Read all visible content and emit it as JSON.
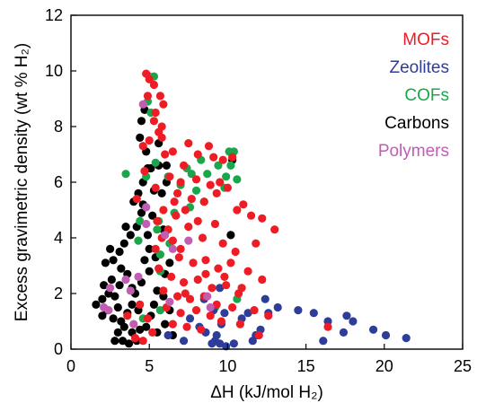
{
  "chart_data": {
    "type": "scatter",
    "xlabel": "ΔH (kJ/mol H₂)",
    "ylabel": "Excess gravimetric density (wt % H₂)",
    "xlim": [
      0,
      25
    ],
    "ylim": [
      0,
      12
    ],
    "xticks": [
      0,
      5,
      10,
      15,
      20,
      25
    ],
    "yticks": [
      0,
      2,
      4,
      6,
      8,
      10,
      12
    ],
    "grid": false,
    "legend_position": "top-right",
    "series": [
      {
        "name": "MOFs",
        "color": "#ee1c25",
        "points": [
          [
            4.8,
            9.9
          ],
          [
            5.0,
            9.7
          ],
          [
            5.3,
            9.5
          ],
          [
            5.7,
            9.1
          ],
          [
            5.9,
            8.8
          ],
          [
            5.3,
            8.2
          ],
          [
            5.6,
            7.8
          ],
          [
            4.6,
            7.3
          ],
          [
            5.0,
            7.5
          ],
          [
            5.8,
            7.6
          ],
          [
            5.4,
            8.5
          ],
          [
            6.0,
            7.0
          ],
          [
            6.5,
            7.1
          ],
          [
            7.5,
            7.4
          ],
          [
            8.1,
            7.0
          ],
          [
            8.8,
            7.3
          ],
          [
            9.1,
            6.9
          ],
          [
            9.7,
            6.8
          ],
          [
            10.3,
            6.9
          ],
          [
            7.2,
            6.6
          ],
          [
            6.3,
            6.2
          ],
          [
            7.0,
            6.0
          ],
          [
            8.0,
            6.1
          ],
          [
            8.9,
            5.9
          ],
          [
            9.5,
            6.0
          ],
          [
            10.0,
            5.8
          ],
          [
            11.0,
            5.2
          ],
          [
            11.5,
            4.8
          ],
          [
            12.2,
            4.7
          ],
          [
            13.0,
            4.3
          ],
          [
            6.8,
            5.6
          ],
          [
            7.7,
            5.4
          ],
          [
            8.5,
            5.3
          ],
          [
            9.3,
            5.6
          ],
          [
            10.6,
            5.0
          ],
          [
            7.3,
            5.0
          ],
          [
            8.1,
            4.6
          ],
          [
            6.7,
            4.8
          ],
          [
            7.5,
            4.4
          ],
          [
            9.2,
            4.5
          ],
          [
            6.2,
            4.3
          ],
          [
            5.8,
            4.0
          ],
          [
            6.5,
            3.9
          ],
          [
            7.0,
            3.6
          ],
          [
            8.4,
            4.0
          ],
          [
            9.7,
            3.8
          ],
          [
            10.5,
            3.5
          ],
          [
            11.8,
            3.8
          ],
          [
            5.4,
            3.6
          ],
          [
            6.9,
            3.3
          ],
          [
            7.8,
            3.1
          ],
          [
            8.6,
            3.2
          ],
          [
            9.4,
            2.9
          ],
          [
            10.2,
            3.1
          ],
          [
            11.3,
            2.8
          ],
          [
            12.2,
            2.5
          ],
          [
            5.6,
            2.9
          ],
          [
            6.4,
            2.6
          ],
          [
            7.2,
            2.4
          ],
          [
            8.1,
            2.5
          ],
          [
            9.0,
            2.2
          ],
          [
            9.9,
            2.3
          ],
          [
            10.7,
            2.0
          ],
          [
            5.9,
            2.1
          ],
          [
            6.8,
            1.9
          ],
          [
            7.6,
            1.8
          ],
          [
            8.5,
            1.9
          ],
          [
            9.3,
            1.6
          ],
          [
            10.3,
            1.5
          ],
          [
            11.7,
            1.4
          ],
          [
            12.6,
            1.2
          ],
          [
            6.1,
            1.5
          ],
          [
            7.0,
            1.3
          ],
          [
            8.0,
            1.4
          ],
          [
            8.9,
            1.2
          ],
          [
            9.6,
            1.0
          ],
          [
            10.8,
            0.9
          ],
          [
            6.5,
            0.9
          ],
          [
            7.4,
            0.8
          ],
          [
            8.3,
            0.7
          ],
          [
            4.4,
            1.6
          ],
          [
            4.9,
            1.1
          ],
          [
            5.2,
            0.6
          ],
          [
            4.1,
            0.4
          ],
          [
            4.6,
            0.3
          ],
          [
            12.0,
            0.5
          ],
          [
            16.4,
            0.8
          ],
          [
            3.6,
            1.2
          ],
          [
            5.4,
            5.8
          ],
          [
            4.7,
            6.4
          ],
          [
            4.2,
            5.4
          ],
          [
            5.9,
            5.0
          ],
          [
            6.6,
            5.3
          ],
          [
            8.6,
            2.7
          ],
          [
            7.3,
            2.0
          ],
          [
            9.8,
            2.6
          ],
          [
            10.9,
            2.2
          ],
          [
            5.8,
            8.0
          ],
          [
            4.9,
            9.1
          ],
          [
            5.5,
            4.6
          ]
        ]
      },
      {
        "name": "Zeolites",
        "color": "#2e3d99",
        "points": [
          [
            21.4,
            0.4
          ],
          [
            20.1,
            0.5
          ],
          [
            19.3,
            0.7
          ],
          [
            18.0,
            1.0
          ],
          [
            17.6,
            1.2
          ],
          [
            17.4,
            0.6
          ],
          [
            16.4,
            1.0
          ],
          [
            16.1,
            0.3
          ],
          [
            15.5,
            1.3
          ],
          [
            14.5,
            1.4
          ],
          [
            13.2,
            1.5
          ],
          [
            12.4,
            1.8
          ],
          [
            12.6,
            1.3
          ],
          [
            12.1,
            0.7
          ],
          [
            11.8,
            0.5
          ],
          [
            11.3,
            1.3
          ],
          [
            10.9,
            1.1
          ],
          [
            9.5,
            2.2
          ],
          [
            9.8,
            1.3
          ],
          [
            9.6,
            0.9
          ],
          [
            9.3,
            0.5
          ],
          [
            9.2,
            0.3
          ],
          [
            9.5,
            0.2
          ],
          [
            9.0,
            0.2
          ],
          [
            8.6,
            0.6
          ],
          [
            8.2,
            0.8
          ],
          [
            7.6,
            1.1
          ],
          [
            7.2,
            0.3
          ],
          [
            9.9,
            0.1
          ],
          [
            10.4,
            0.2
          ],
          [
            11.6,
            0.3
          ],
          [
            6.2,
            0.5
          ],
          [
            9.1,
            1.4
          ],
          [
            8.5,
            1.8
          ]
        ]
      },
      {
        "name": "COFs",
        "color": "#1aa64b",
        "points": [
          [
            5.0,
            9.8
          ],
          [
            5.3,
            9.8
          ],
          [
            4.9,
            8.9
          ],
          [
            5.1,
            8.5
          ],
          [
            3.5,
            6.3
          ],
          [
            4.8,
            6.2
          ],
          [
            5.4,
            6.7
          ],
          [
            6.2,
            6.2
          ],
          [
            7.4,
            6.5
          ],
          [
            8.3,
            6.8
          ],
          [
            8.7,
            6.3
          ],
          [
            9.4,
            6.6
          ],
          [
            10.1,
            7.1
          ],
          [
            10.4,
            7.1
          ],
          [
            10.2,
            6.6
          ],
          [
            9.9,
            6.2
          ],
          [
            7.0,
            5.9
          ],
          [
            7.7,
            6.3
          ],
          [
            8.0,
            5.7
          ],
          [
            8.5,
            5.3
          ],
          [
            9.8,
            5.8
          ],
          [
            10.6,
            6.1
          ],
          [
            7.6,
            5.1
          ],
          [
            6.6,
            4.9
          ],
          [
            5.6,
            4.6
          ],
          [
            5.5,
            4.3
          ],
          [
            5.7,
            3.4
          ],
          [
            6.3,
            3.8
          ],
          [
            4.3,
            3.9
          ],
          [
            4.4,
            4.6
          ],
          [
            5.7,
            2.8
          ],
          [
            10.6,
            1.8
          ],
          [
            9.2,
            1.5
          ],
          [
            4.6,
            1.1
          ],
          [
            5.7,
            1.4
          ]
        ]
      },
      {
        "name": "Carbons",
        "color": "#000000",
        "points": [
          [
            4.7,
            8.6
          ],
          [
            4.5,
            8.2
          ],
          [
            4.4,
            7.6
          ],
          [
            4.8,
            7.1
          ],
          [
            4.9,
            6.5
          ],
          [
            4.6,
            6.0
          ],
          [
            5.1,
            6.5
          ],
          [
            5.6,
            6.6
          ],
          [
            4.3,
            5.6
          ],
          [
            4.0,
            5.3
          ],
          [
            4.5,
            4.9
          ],
          [
            4.2,
            4.4
          ],
          [
            3.8,
            4.1
          ],
          [
            3.5,
            4.4
          ],
          [
            3.4,
            3.8
          ],
          [
            3.1,
            3.5
          ],
          [
            2.7,
            3.2
          ],
          [
            2.2,
            3.1
          ],
          [
            3.2,
            2.9
          ],
          [
            3.6,
            2.7
          ],
          [
            3.1,
            2.3
          ],
          [
            2.6,
            2.5
          ],
          [
            2.1,
            2.3
          ],
          [
            2.8,
            1.9
          ],
          [
            2.0,
            1.8
          ],
          [
            1.6,
            1.6
          ],
          [
            2.3,
            1.4
          ],
          [
            2.0,
            1.2
          ],
          [
            2.7,
            1.1
          ],
          [
            3.2,
            1.0
          ],
          [
            3.6,
            1.3
          ],
          [
            3.9,
            1.6
          ],
          [
            4.1,
            2.0
          ],
          [
            4.5,
            2.4
          ],
          [
            5.0,
            2.8
          ],
          [
            5.4,
            3.3
          ],
          [
            5.0,
            3.6
          ],
          [
            4.7,
            3.2
          ],
          [
            4.9,
            4.1
          ],
          [
            5.2,
            4.8
          ],
          [
            5.8,
            5.6
          ],
          [
            5.3,
            5.7
          ],
          [
            6.1,
            6.0
          ],
          [
            5.9,
            4.3
          ],
          [
            6.3,
            3.1
          ],
          [
            6.0,
            2.7
          ],
          [
            5.5,
            2.1
          ],
          [
            5.3,
            1.6
          ],
          [
            5.1,
            1.2
          ],
          [
            4.8,
            0.8
          ],
          [
            4.4,
            0.7
          ],
          [
            3.9,
            0.6
          ],
          [
            3.4,
            0.8
          ],
          [
            3.0,
            0.6
          ],
          [
            2.8,
            0.3
          ],
          [
            3.3,
            0.3
          ],
          [
            3.7,
            0.2
          ],
          [
            4.2,
            0.3
          ],
          [
            5.5,
            0.6
          ],
          [
            6.0,
            0.9
          ],
          [
            6.3,
            1.4
          ],
          [
            6.5,
            0.5
          ],
          [
            10.3,
            6.8
          ],
          [
            10.2,
            4.1
          ],
          [
            3.0,
            1.5
          ],
          [
            3.9,
            2.2
          ],
          [
            2.5,
            3.6
          ],
          [
            4.6,
            5.2
          ],
          [
            5.6,
            7.4
          ],
          [
            6.1,
            6.6
          ],
          [
            4.3,
            1.4
          ],
          [
            2.4,
            2.0
          ],
          [
            5.9,
            1.9
          ]
        ]
      },
      {
        "name": "Polymers",
        "color": "#c15db2",
        "points": [
          [
            4.6,
            8.8
          ],
          [
            2.1,
            1.5
          ],
          [
            2.4,
            1.4
          ],
          [
            2.5,
            2.2
          ],
          [
            3.5,
            2.5
          ],
          [
            3.8,
            2.1
          ],
          [
            4.3,
            2.6
          ],
          [
            4.8,
            5.1
          ],
          [
            4.8,
            4.5
          ],
          [
            6.5,
            3.6
          ],
          [
            7.5,
            3.9
          ],
          [
            6.3,
            1.7
          ],
          [
            8.7,
            1.9
          ],
          [
            8.9,
            1.5
          ],
          [
            4.0,
            0.9
          ],
          [
            6.0,
            4.1
          ]
        ]
      }
    ]
  }
}
